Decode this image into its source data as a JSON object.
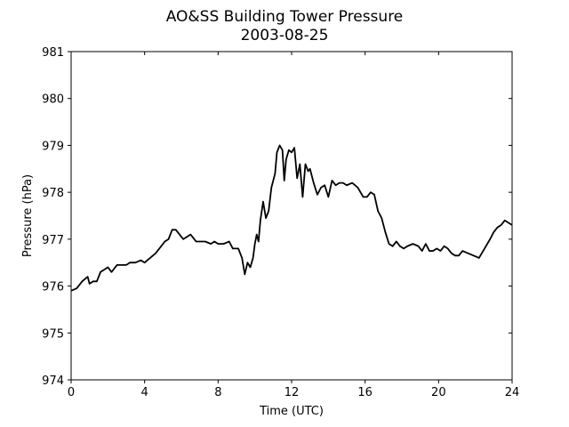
{
  "chart_data": {
    "type": "line",
    "title": "AO&SS Building Tower Pressure",
    "subtitle": "2003-08-25",
    "xlabel": "Time (UTC)",
    "ylabel": "Pressure (hPa)",
    "xlim": [
      0,
      24
    ],
    "ylim": [
      974,
      981
    ],
    "xticks": [
      0,
      4,
      8,
      12,
      16,
      20,
      24
    ],
    "yticks": [
      974,
      975,
      976,
      977,
      978,
      979,
      980,
      981
    ],
    "grid": false,
    "line_color": "#000000",
    "series": [
      {
        "x": [
          0,
          0.3,
          0.6,
          0.9,
          1.0,
          1.2,
          1.4,
          1.6,
          1.8,
          2.0,
          2.2,
          2.5,
          2.8,
          3.0,
          3.2,
          3.5,
          3.8,
          4.0,
          4.3,
          4.6,
          4.9,
          5.1,
          5.3,
          5.5,
          5.7,
          5.9,
          6.1,
          6.3,
          6.5,
          6.8,
          7.0,
          7.3,
          7.6,
          7.8,
          8.0,
          8.3,
          8.6,
          8.8,
          9.1,
          9.3,
          9.45,
          9.6,
          9.75,
          9.9,
          10.0,
          10.1,
          10.2,
          10.3,
          10.45,
          10.6,
          10.75,
          10.9,
          11.1,
          11.2,
          11.35,
          11.5,
          11.6,
          11.7,
          11.85,
          12.0,
          12.15,
          12.3,
          12.45,
          12.6,
          12.75,
          12.9,
          13.0,
          13.2,
          13.4,
          13.6,
          13.8,
          14.0,
          14.2,
          14.4,
          14.6,
          14.8,
          15.0,
          15.3,
          15.6,
          15.9,
          16.1,
          16.3,
          16.5,
          16.7,
          16.9,
          17.1,
          17.3,
          17.5,
          17.7,
          17.9,
          18.1,
          18.3,
          18.6,
          18.9,
          19.1,
          19.3,
          19.5,
          19.7,
          19.9,
          20.1,
          20.3,
          20.5,
          20.7,
          20.9,
          21.1,
          21.3,
          21.6,
          21.9,
          22.2,
          22.5,
          22.8,
          23.0,
          23.2,
          23.4,
          23.6,
          23.8,
          24.0
        ],
        "y": [
          975.9,
          975.95,
          976.1,
          976.2,
          976.05,
          976.1,
          976.1,
          976.3,
          976.35,
          976.4,
          976.3,
          976.45,
          976.45,
          976.45,
          976.5,
          976.5,
          976.55,
          976.5,
          976.6,
          976.7,
          976.85,
          976.95,
          977.0,
          977.2,
          977.2,
          977.1,
          977.0,
          977.05,
          977.1,
          976.95,
          976.95,
          976.95,
          976.9,
          976.95,
          976.9,
          976.9,
          976.95,
          976.8,
          976.8,
          976.6,
          976.25,
          976.5,
          976.4,
          976.6,
          976.9,
          977.1,
          976.95,
          977.4,
          977.8,
          977.45,
          977.6,
          978.1,
          978.4,
          978.85,
          979.0,
          978.9,
          978.25,
          978.7,
          978.9,
          978.85,
          978.95,
          978.3,
          978.6,
          977.9,
          978.6,
          978.45,
          978.5,
          978.2,
          977.95,
          978.1,
          978.15,
          977.9,
          978.25,
          978.15,
          978.2,
          978.2,
          978.15,
          978.2,
          978.1,
          977.9,
          977.9,
          978.0,
          977.95,
          977.6,
          977.45,
          977.15,
          976.9,
          976.85,
          976.95,
          976.85,
          976.8,
          976.85,
          976.9,
          976.85,
          976.75,
          976.9,
          976.75,
          976.75,
          976.8,
          976.75,
          976.85,
          976.8,
          976.7,
          976.65,
          976.65,
          976.75,
          976.7,
          976.65,
          976.6,
          976.8,
          977.0,
          977.15,
          977.25,
          977.3,
          977.4,
          977.35,
          977.3
        ]
      }
    ]
  }
}
